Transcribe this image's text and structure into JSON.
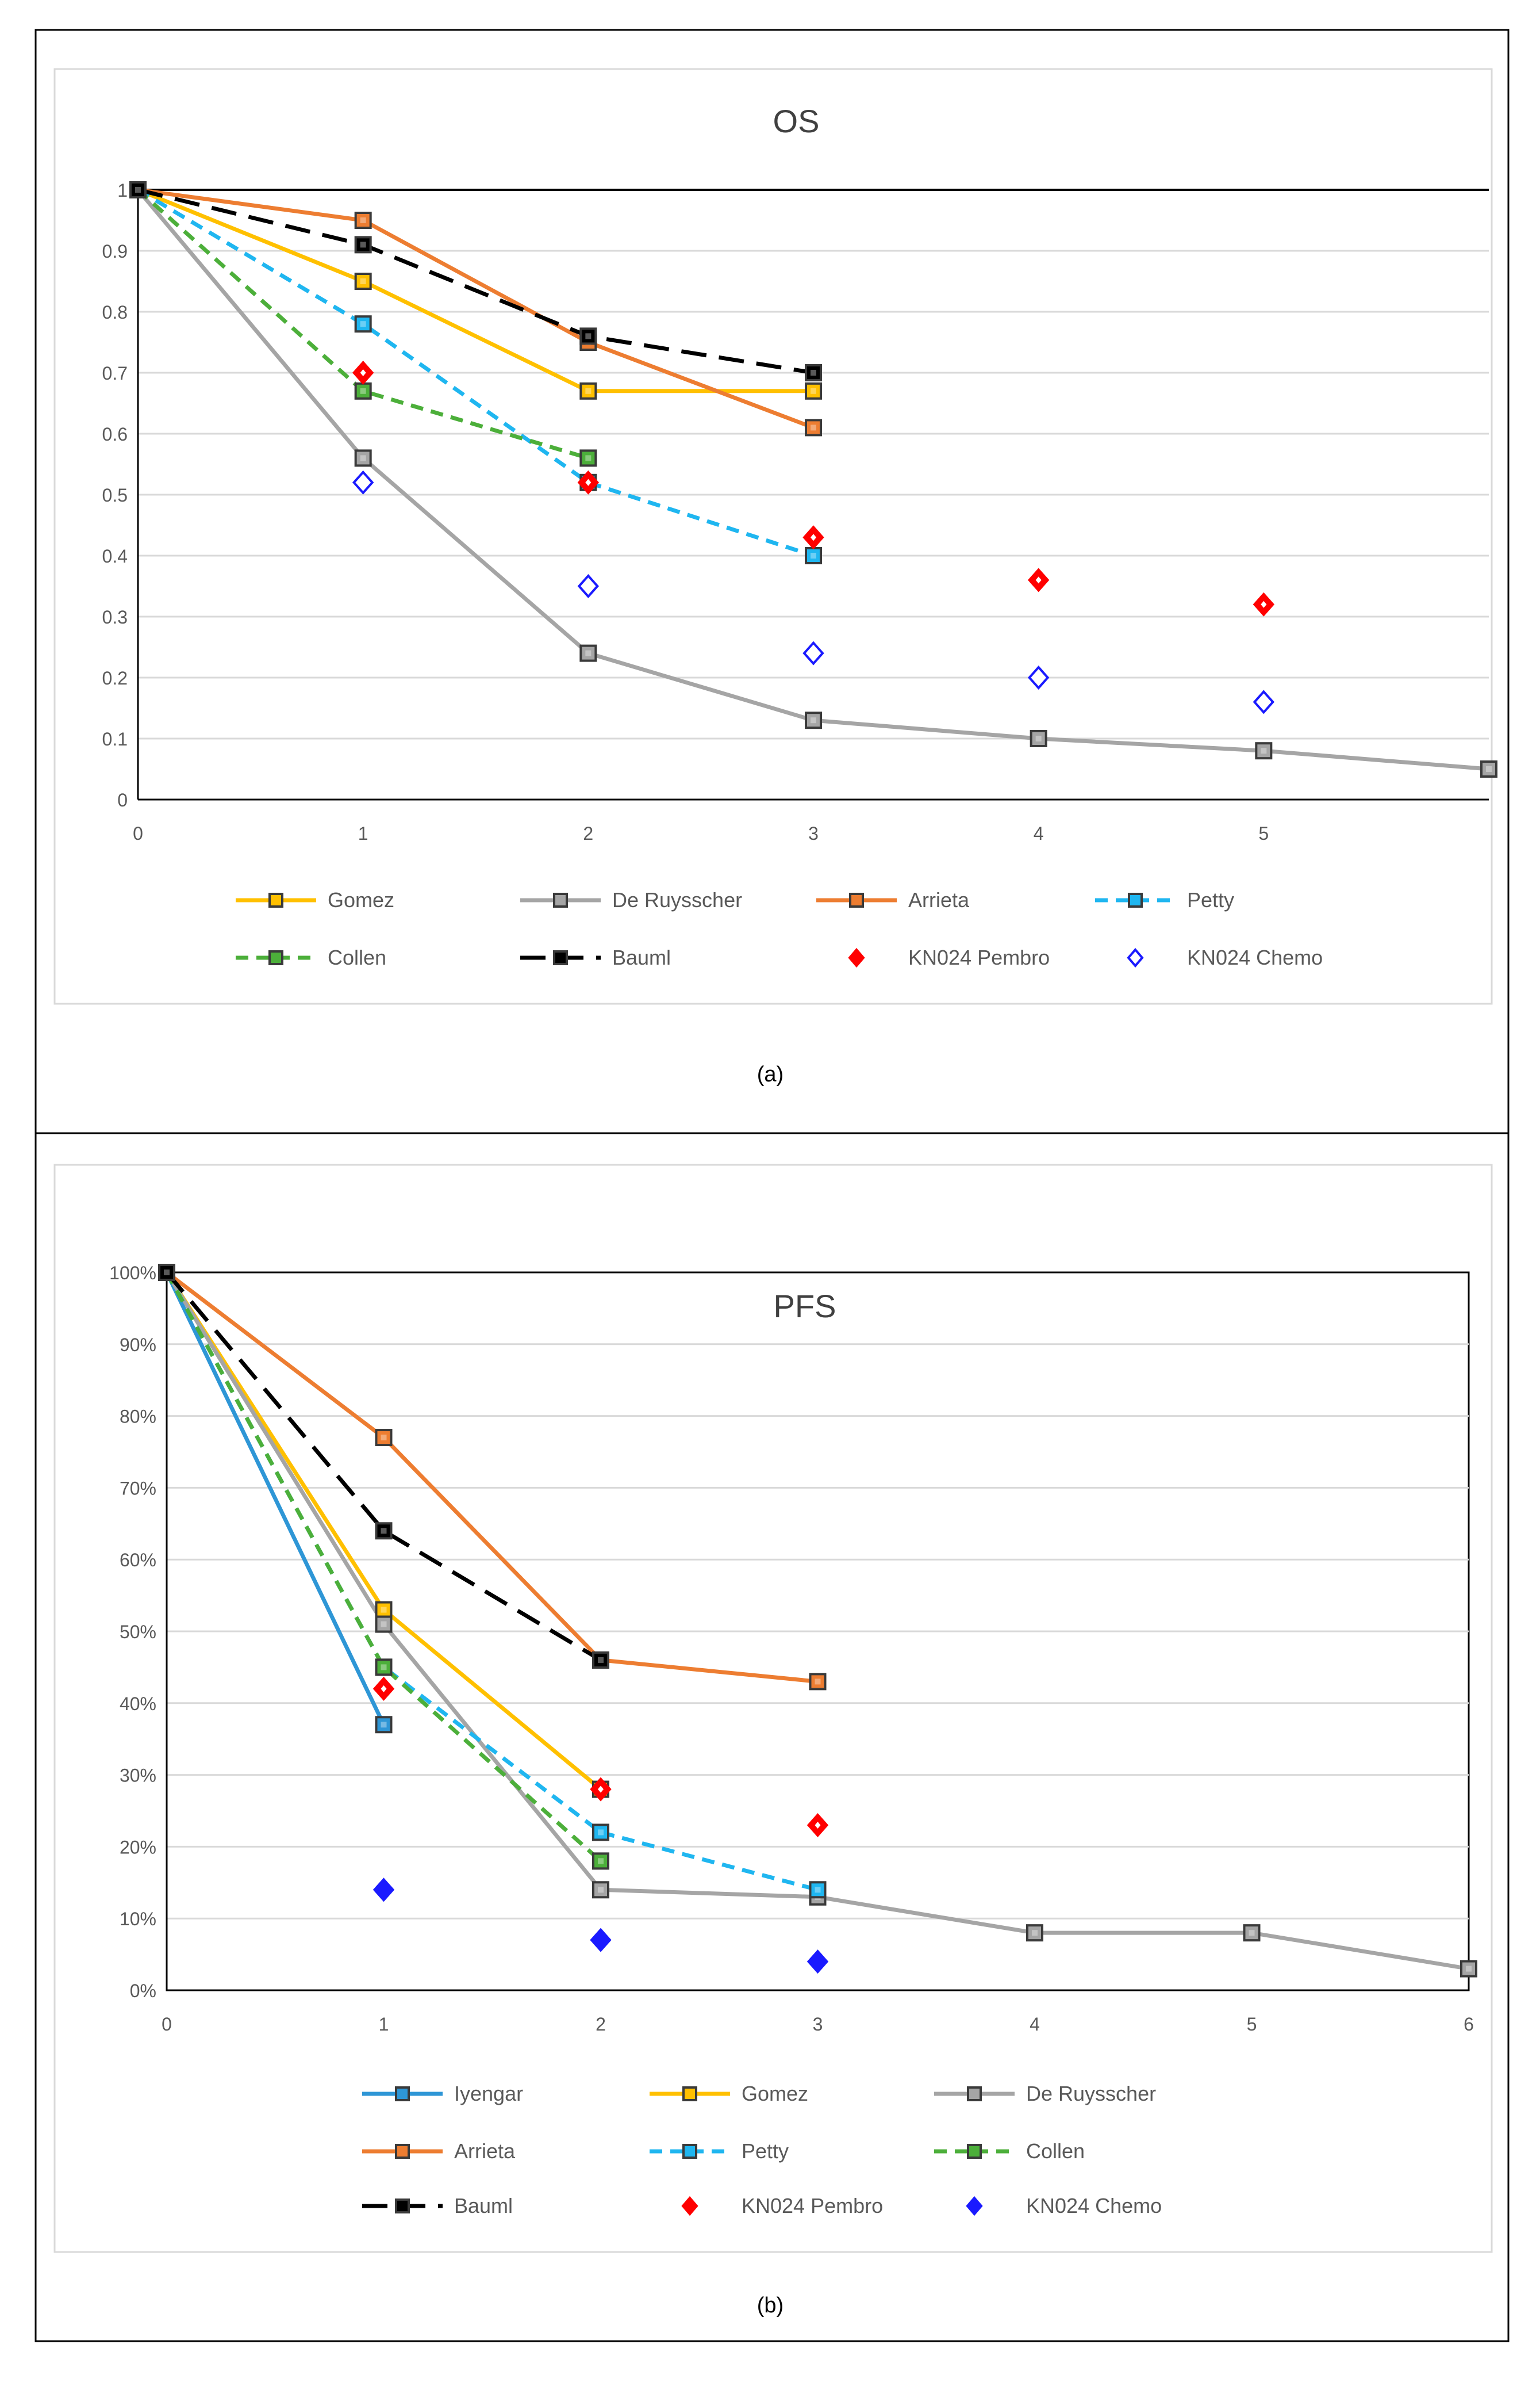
{
  "figure": {
    "caption_a": "(a)",
    "caption_b": "(b)"
  },
  "colors": {
    "Iyengar": "#2e96d6",
    "Gomez": "#ffc000",
    "De Ruysscher": "#a5a5a5",
    "Arrieta": "#ed7d31",
    "Petty": "#1fb6f0",
    "Collen": "#4caf3a",
    "Bauml": "#000000",
    "KN024 Pembro": "#ff0000",
    "KN024 Chemo": "#1a1aff"
  },
  "chart_data": [
    {
      "type": "line",
      "title": "OS",
      "xlabel": "",
      "ylabel": "",
      "xlim": [
        0,
        6
      ],
      "ylim": [
        0,
        1
      ],
      "x_ticks": [
        "0",
        "1",
        "2",
        "3",
        "4",
        "5"
      ],
      "y_ticks": [
        "0",
        "0.1",
        "0.2",
        "0.3",
        "0.4",
        "0.5",
        "0.6",
        "0.7",
        "0.8",
        "0.9",
        "1"
      ],
      "grid": true,
      "series": [
        {
          "name": "Gomez",
          "style": "solid",
          "marker": "square",
          "x": [
            0,
            1,
            2,
            3
          ],
          "y": [
            1,
            0.85,
            0.67,
            0.67
          ]
        },
        {
          "name": "De Ruysscher",
          "style": "solid",
          "marker": "square",
          "x": [
            0,
            1,
            2,
            3,
            4,
            5,
            6
          ],
          "y": [
            1,
            0.56,
            0.24,
            0.13,
            0.1,
            0.08,
            0.05
          ]
        },
        {
          "name": "Arrieta",
          "style": "solid",
          "marker": "square",
          "x": [
            0,
            1,
            2,
            3
          ],
          "y": [
            1,
            0.95,
            0.75,
            0.61
          ]
        },
        {
          "name": "Petty",
          "style": "dashed",
          "marker": "square",
          "x": [
            0,
            1,
            2,
            3
          ],
          "y": [
            1,
            0.78,
            0.52,
            0.4
          ]
        },
        {
          "name": "Collen",
          "style": "dashed",
          "marker": "square",
          "x": [
            0,
            1,
            2
          ],
          "y": [
            1,
            0.67,
            0.56
          ]
        },
        {
          "name": "Bauml",
          "style": "longdash",
          "marker": "square",
          "x": [
            0,
            1,
            2,
            3
          ],
          "y": [
            1,
            0.91,
            0.76,
            0.7
          ]
        },
        {
          "name": "KN024 Pembro",
          "style": "none",
          "marker": "diamond",
          "x": [
            1,
            2,
            3,
            4,
            5
          ],
          "y": [
            0.7,
            0.52,
            0.43,
            0.36,
            0.32
          ]
        },
        {
          "name": "KN024 Chemo",
          "style": "none",
          "marker": "diamond-open",
          "x": [
            1,
            2,
            3,
            4,
            5
          ],
          "y": [
            0.52,
            0.35,
            0.24,
            0.2,
            0.16
          ]
        }
      ],
      "legend": [
        "Gomez",
        "De Ruysscher",
        "Arrieta",
        "Petty",
        "Collen",
        "Bauml",
        "KN024 Pembro",
        "KN024 Chemo"
      ]
    },
    {
      "type": "line",
      "title": "PFS",
      "xlabel": "",
      "ylabel": "",
      "xlim": [
        0,
        6
      ],
      "ylim": [
        0,
        100
      ],
      "x_ticks": [
        "0",
        "1",
        "2",
        "3",
        "4",
        "5",
        "6"
      ],
      "y_ticks": [
        "0%",
        "10%",
        "20%",
        "30%",
        "40%",
        "50%",
        "60%",
        "70%",
        "80%",
        "90%",
        "100%"
      ],
      "grid": true,
      "series": [
        {
          "name": "Iyengar",
          "style": "solid",
          "marker": "square",
          "x": [
            0,
            1
          ],
          "y": [
            100,
            37
          ]
        },
        {
          "name": "Gomez",
          "style": "solid",
          "marker": "square",
          "x": [
            0,
            1,
            2
          ],
          "y": [
            100,
            53,
            28
          ]
        },
        {
          "name": "De Ruysscher",
          "style": "solid",
          "marker": "square",
          "x": [
            0,
            1,
            2,
            3,
            4,
            5,
            6
          ],
          "y": [
            100,
            51,
            14,
            13,
            8,
            8,
            3
          ]
        },
        {
          "name": "Arrieta",
          "style": "solid",
          "marker": "square",
          "x": [
            0,
            1,
            2,
            3
          ],
          "y": [
            100,
            77,
            46,
            43
          ]
        },
        {
          "name": "Petty",
          "style": "dashed",
          "marker": "square",
          "x": [
            0,
            1,
            2,
            3
          ],
          "y": [
            100,
            45,
            22,
            14
          ]
        },
        {
          "name": "Collen",
          "style": "dashed",
          "marker": "square",
          "x": [
            0,
            1,
            2
          ],
          "y": [
            100,
            45,
            18
          ]
        },
        {
          "name": "Bauml",
          "style": "longdash",
          "marker": "square",
          "x": [
            0,
            1,
            2
          ],
          "y": [
            100,
            64,
            46
          ]
        },
        {
          "name": "KN024 Pembro",
          "style": "none",
          "marker": "diamond",
          "x": [
            1,
            2,
            3
          ],
          "y": [
            42,
            28,
            23
          ]
        },
        {
          "name": "KN024 Chemo",
          "style": "none",
          "marker": "diamond-filled",
          "x": [
            1,
            2,
            3
          ],
          "y": [
            14,
            7,
            4
          ]
        }
      ],
      "legend": [
        "Iyengar",
        "Gomez",
        "De Ruysscher",
        "Arrieta",
        "Petty",
        "Collen",
        "Bauml",
        "KN024 Pembro",
        "KN024 Chemo"
      ]
    }
  ]
}
